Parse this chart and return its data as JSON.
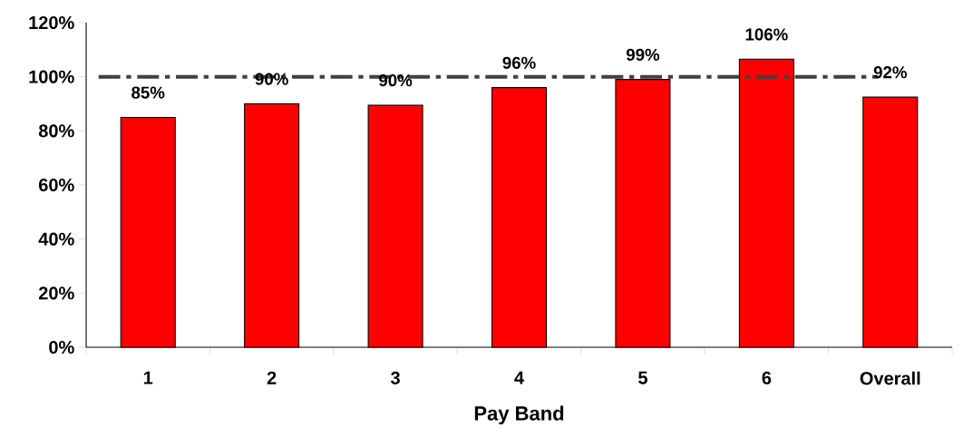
{
  "chart_data": {
    "type": "bar",
    "xlabel": "Pay Band",
    "categories": [
      "1",
      "2",
      "3",
      "4",
      "5",
      "6",
      "Overall"
    ],
    "values": [
      85,
      90,
      89.5,
      96,
      99,
      106.5,
      92.5
    ],
    "value_labels": [
      "85%",
      "90%",
      "90%",
      "96%",
      "99%",
      "106%",
      "92%"
    ],
    "color": "#ff0000",
    "ylim": [
      0,
      120
    ],
    "yticks": [
      {
        "value": 0,
        "label": "0%"
      },
      {
        "value": 20,
        "label": "20%"
      },
      {
        "value": 40,
        "label": "40%"
      },
      {
        "value": 60,
        "label": "60%"
      },
      {
        "value": 80,
        "label": "80%"
      },
      {
        "value": 100,
        "label": "100%"
      },
      {
        "value": 120,
        "label": "120%"
      }
    ],
    "ref_lines": [
      {
        "axis": "y",
        "value": 100,
        "color": "#404040",
        "line_style": "dashdot"
      }
    ],
    "grid": false
  }
}
